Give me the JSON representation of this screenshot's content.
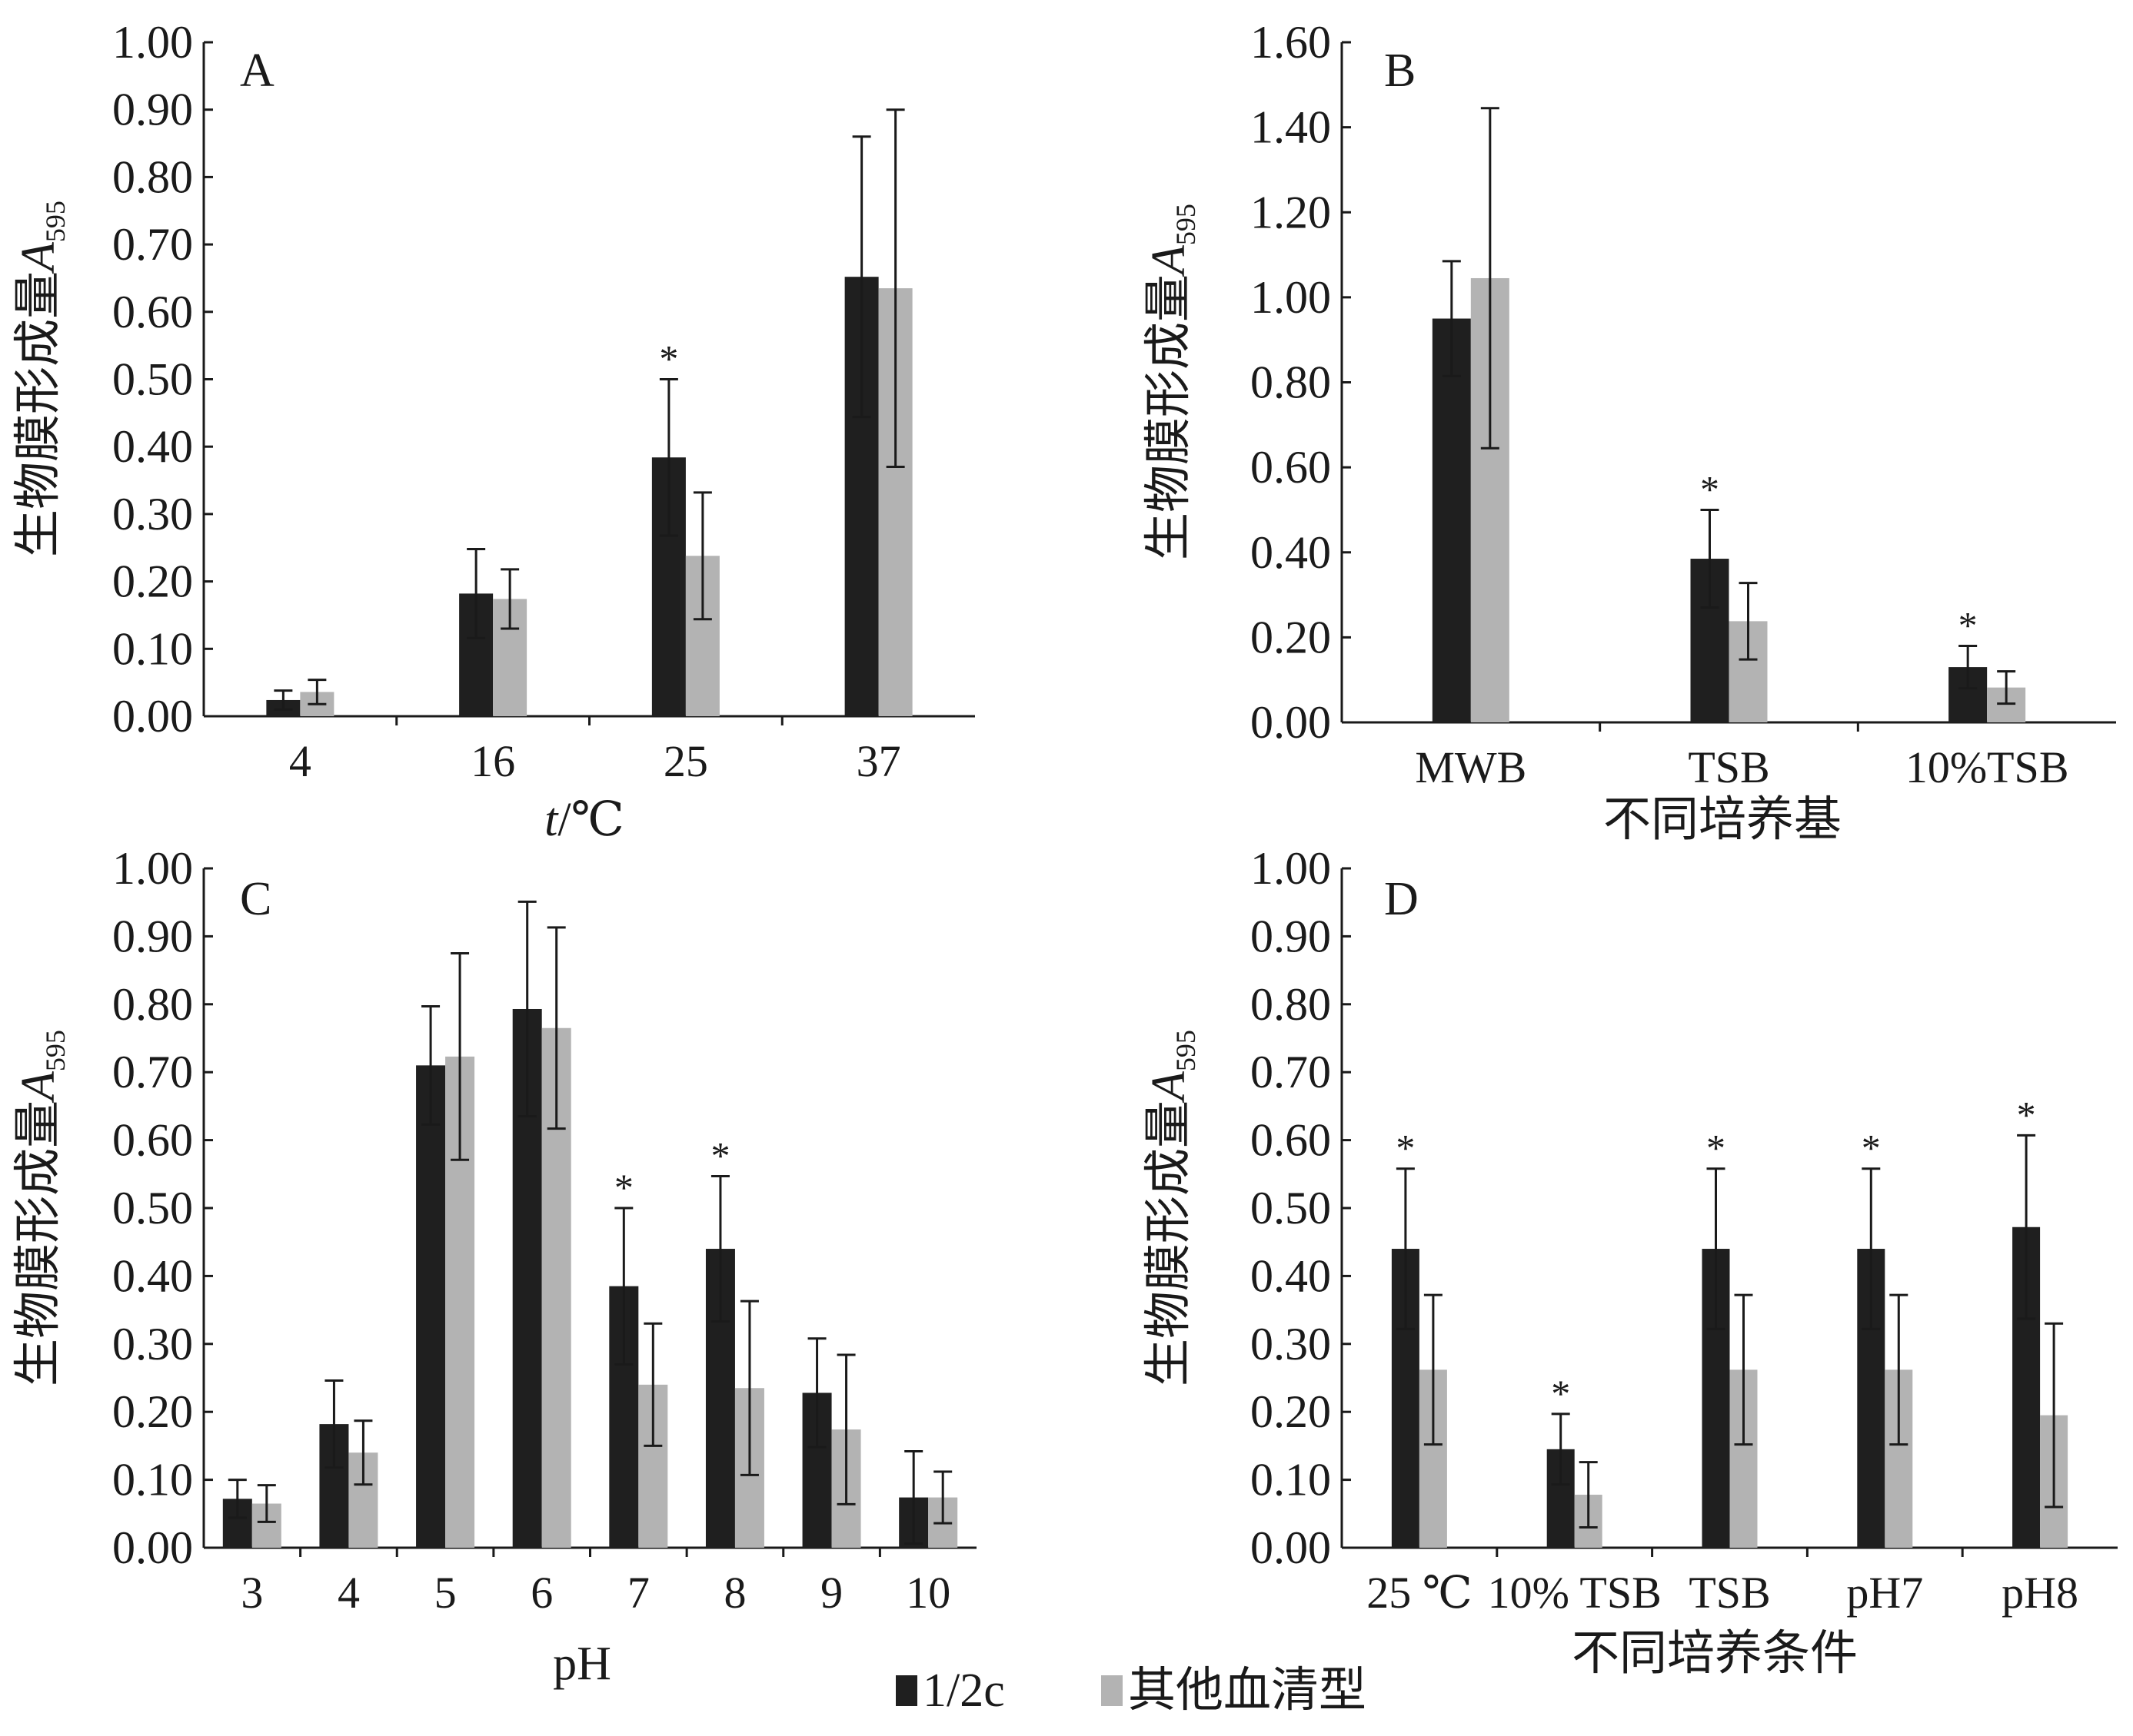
{
  "colors": {
    "dark": "#1f1f1f",
    "light": "#b3b3b3",
    "axis": "#1a1a1a"
  },
  "legend": {
    "items": [
      {
        "label": "1/2c",
        "color": "#1f1f1f"
      },
      {
        "label": "其他血清型",
        "color": "#b3b3b3"
      }
    ]
  },
  "chart_data": [
    {
      "type": "bar",
      "panel": "A",
      "ylabel": "生物膜形成量",
      "ylabel_italic": "A",
      "ylabel_sub": "595",
      "xlabel_italic": "t",
      "xlabel": "/℃",
      "ylim": [
        0,
        1.0
      ],
      "ystep": 0.1,
      "yticks": [
        "0.00",
        "0.10",
        "0.20",
        "0.30",
        "0.40",
        "0.50",
        "0.60",
        "0.70",
        "0.80",
        "0.90",
        "1.00"
      ],
      "categories": [
        "4",
        "16",
        "25",
        "37"
      ],
      "series": [
        {
          "name": "1/2c",
          "values": [
            0.024,
            0.182,
            0.384,
            0.652
          ],
          "errors": [
            0.014,
            0.066,
            0.116,
            0.208
          ]
        },
        {
          "name": "其他血清型",
          "values": [
            0.036,
            0.174,
            0.238,
            0.635
          ],
          "errors": [
            0.018,
            0.044,
            0.094,
            0.265
          ]
        }
      ],
      "stars": [
        false,
        false,
        true,
        false
      ],
      "star": "*"
    },
    {
      "type": "bar",
      "panel": "B",
      "ylabel": "生物膜形成量",
      "ylabel_italic": "A",
      "ylabel_sub": "595",
      "xlabel": "不同培养基",
      "ylim": [
        0,
        1.6
      ],
      "ystep": 0.2,
      "yticks": [
        "0.00",
        "0.20",
        "0.40",
        "0.60",
        "0.80",
        "1.00",
        "1.20",
        "1.40",
        "1.60"
      ],
      "categories": [
        "MWB",
        "TSB",
        "10%TSB"
      ],
      "series": [
        {
          "name": "1/2c",
          "values": [
            0.95,
            0.385,
            0.13
          ],
          "errors": [
            0.135,
            0.115,
            0.05
          ]
        },
        {
          "name": "其他血清型",
          "values": [
            1.045,
            0.238,
            0.082
          ],
          "errors": [
            0.4,
            0.09,
            0.038
          ]
        }
      ],
      "stars": [
        false,
        true,
        true
      ],
      "star": "*"
    },
    {
      "type": "bar",
      "panel": "C",
      "ylabel": "生物膜形成量",
      "ylabel_italic": "A",
      "ylabel_sub": "595",
      "xlabel": "pH",
      "ylim": [
        0,
        1.0
      ],
      "ystep": 0.1,
      "yticks": [
        "0.00",
        "0.10",
        "0.20",
        "0.30",
        "0.40",
        "0.50",
        "0.60",
        "0.70",
        "0.80",
        "0.90",
        "1.00"
      ],
      "categories": [
        "3",
        "4",
        "5",
        "6",
        "7",
        "8",
        "9",
        "10"
      ],
      "series": [
        {
          "name": "1/2c",
          "values": [
            0.072,
            0.182,
            0.71,
            0.793,
            0.385,
            0.44,
            0.228,
            0.074
          ],
          "errors": [
            0.028,
            0.064,
            0.087,
            0.158,
            0.115,
            0.107,
            0.08,
            0.068
          ]
        },
        {
          "name": "其他血清型",
          "values": [
            0.065,
            0.14,
            0.723,
            0.765,
            0.24,
            0.235,
            0.174,
            0.074
          ],
          "errors": [
            0.027,
            0.047,
            0.152,
            0.148,
            0.09,
            0.128,
            0.11,
            0.038
          ]
        }
      ],
      "stars": [
        false,
        false,
        false,
        false,
        true,
        true,
        false,
        false
      ],
      "star": "*"
    },
    {
      "type": "bar",
      "panel": "D",
      "ylabel": "生物膜形成量",
      "ylabel_italic": "A",
      "ylabel_sub": "595",
      "xlabel": "不同培养条件",
      "ylim": [
        0,
        1.0
      ],
      "ystep": 0.1,
      "yticks": [
        "0.00",
        "0.10",
        "0.20",
        "0.30",
        "0.40",
        "0.50",
        "0.60",
        "0.70",
        "0.80",
        "0.90",
        "1.00"
      ],
      "categories": [
        "25 ℃",
        "10% TSB",
        "TSB",
        "pH7",
        "pH8"
      ],
      "series": [
        {
          "name": "1/2c",
          "values": [
            0.44,
            0.145,
            0.44,
            0.44,
            0.472
          ],
          "errors": [
            0.118,
            0.052,
            0.118,
            0.118,
            0.135
          ]
        },
        {
          "name": "其他血清型",
          "values": [
            0.262,
            0.078,
            0.262,
            0.262,
            0.195
          ],
          "errors": [
            0.11,
            0.048,
            0.11,
            0.11,
            0.135
          ]
        }
      ],
      "stars": [
        true,
        true,
        true,
        true,
        true
      ],
      "star": "*"
    }
  ]
}
